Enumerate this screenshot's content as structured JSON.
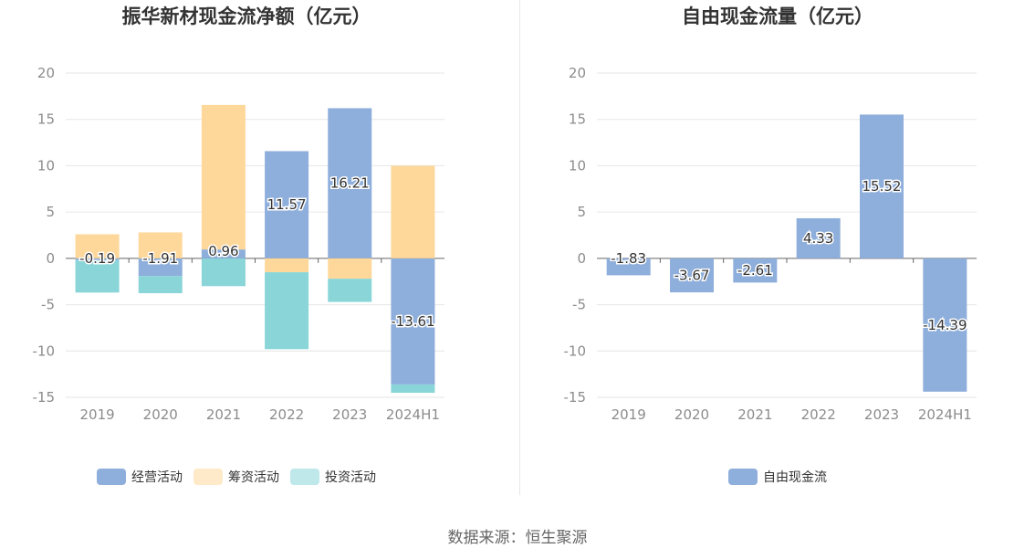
{
  "chart_data": [
    {
      "type": "bar",
      "stacked": true,
      "title": "振华新材现金流净额（亿元）",
      "categories": [
        "2019",
        "2020",
        "2021",
        "2022",
        "2023",
        "2024H1"
      ],
      "ylim": [
        -15,
        20
      ],
      "yticks": [
        "20",
        "15",
        "10",
        "5",
        "0",
        "-5",
        "-10",
        "-15"
      ],
      "grid": true,
      "legend_position": "bottom",
      "series": [
        {
          "name": "经营活动",
          "color": "#8eaedb",
          "values": [
            -0.19,
            -1.91,
            0.96,
            11.57,
            16.21,
            -13.61
          ]
        },
        {
          "name": "筹资活动",
          "color": "#fed89b",
          "values": [
            2.6,
            2.8,
            15.6,
            -1.5,
            -2.2,
            10.0
          ]
        },
        {
          "name": "投资活动",
          "color": "#89d5d8",
          "values": [
            -3.5,
            -1.85,
            -3.0,
            -8.3,
            -2.5,
            -0.9
          ]
        }
      ],
      "data_labels": [
        "-0.19",
        "-1.91",
        "0.96",
        "11.57",
        "16.21",
        "-13.61"
      ]
    },
    {
      "type": "bar",
      "title": "自由现金流量（亿元）",
      "categories": [
        "2019",
        "2020",
        "2021",
        "2022",
        "2023",
        "2024H1"
      ],
      "ylim": [
        -15,
        20
      ],
      "yticks": [
        "20",
        "15",
        "10",
        "5",
        "0",
        "-5",
        "-10",
        "-15"
      ],
      "grid": true,
      "legend_position": "bottom",
      "series": [
        {
          "name": "自由现金流",
          "color": "#8eaedb",
          "values": [
            -1.83,
            -3.67,
            -2.61,
            4.33,
            15.52,
            -14.39
          ]
        }
      ],
      "data_labels": [
        "-1.83",
        "-3.67",
        "-2.61",
        "4.33",
        "15.52",
        "-14.39"
      ]
    }
  ],
  "source": "数据来源：恒生聚源"
}
